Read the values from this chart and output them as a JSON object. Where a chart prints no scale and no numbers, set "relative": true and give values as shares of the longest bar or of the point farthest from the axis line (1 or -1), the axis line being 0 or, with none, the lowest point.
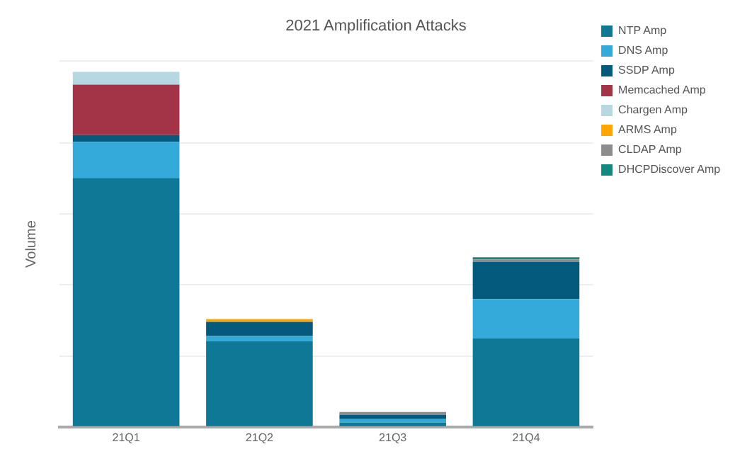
{
  "chart_data": {
    "type": "bar",
    "title": "2021 Amplification Attacks",
    "ylabel": "Volume",
    "categories": [
      "21Q1",
      "21Q2",
      "21Q3",
      "21Q4"
    ],
    "stacked": true,
    "relative": true,
    "grid": "y",
    "legend": "right",
    "series": [
      {
        "name": "NTP Amp",
        "color": "#0e7896",
        "values": [
          0.701,
          0.241,
          0.012,
          0.249
        ]
      },
      {
        "name": "DNS Amp",
        "color": "#33aad9",
        "values": [
          0.102,
          0.015,
          0.01,
          0.111
        ]
      },
      {
        "name": "SSDP Amp",
        "color": "#045a7d",
        "values": [
          0.019,
          0.04,
          0.012,
          0.105
        ]
      },
      {
        "name": "Memcached Amp",
        "color": "#a33346",
        "values": [
          0.142,
          null,
          null,
          null
        ]
      },
      {
        "name": "Chargen Amp",
        "color": "#b5d8e3",
        "values": [
          0.036,
          null,
          null,
          null
        ]
      },
      {
        "name": "ARMS Amp",
        "color": "#ffa500",
        "values": [
          null,
          0.008,
          null,
          null
        ]
      },
      {
        "name": "CLDAP Amp",
        "color": "#8c8c8c",
        "values": [
          null,
          null,
          0.008,
          0.007
        ]
      },
      {
        "name": "DHCPDiscover Amp",
        "color": "#12887e",
        "values": [
          null,
          null,
          null,
          0.006
        ]
      }
    ]
  }
}
